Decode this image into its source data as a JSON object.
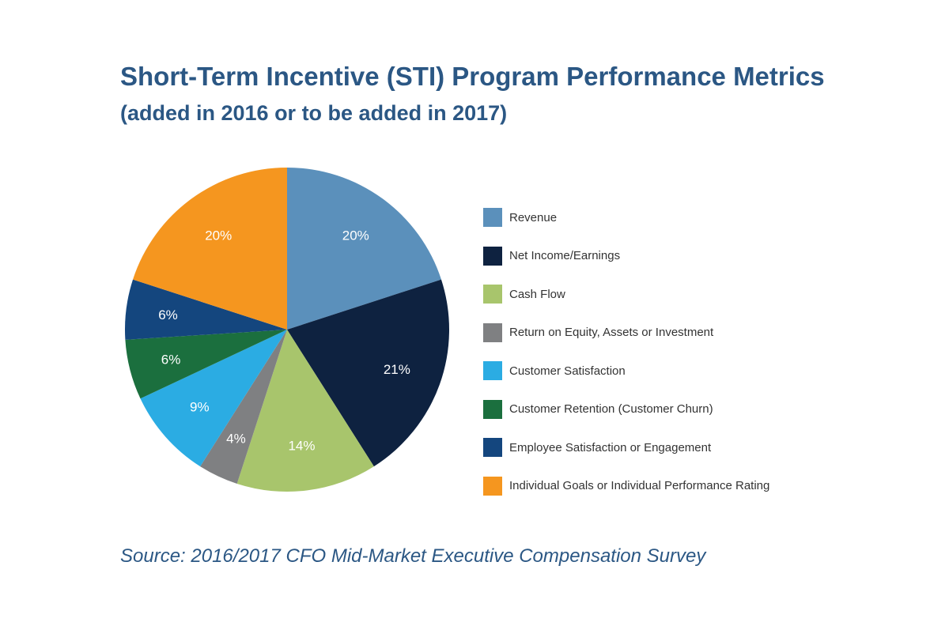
{
  "chart_data": {
    "type": "pie",
    "title": "Short-Term Incentive (STI) Program Performance Metrics",
    "subtitle": "(added in 2016 or to be added in 2017)",
    "source": "Source: 2016/2017 CFO Mid-Market Executive Compensation Survey",
    "legend_position": "right",
    "start_angle": "top, clockwise",
    "slices": [
      {
        "label": "Revenue",
        "value": 20,
        "display": "20%",
        "color": "#5b90bb"
      },
      {
        "label": "Net Income/Earnings",
        "value": 21,
        "display": "21%",
        "color": "#0e2240"
      },
      {
        "label": "Cash Flow",
        "value": 14,
        "display": "14%",
        "color": "#a8c56c"
      },
      {
        "label": "Return on Equity, Assets or Investment",
        "value": 4,
        "display": "4%",
        "color": "#7f8082"
      },
      {
        "label": "Customer Satisfaction",
        "value": 9,
        "display": "9%",
        "color": "#2bace3"
      },
      {
        "label": "Customer Retention (Customer Churn)",
        "value": 6,
        "display": "6%",
        "color": "#1b6f3e"
      },
      {
        "label": "Employee Satisfaction or Engagement",
        "value": 6,
        "display": "6%",
        "color": "#14467e"
      },
      {
        "label": "Individual Goals or Individual Performance Rating",
        "value": 20,
        "display": "20%",
        "color": "#f5961f"
      }
    ]
  }
}
